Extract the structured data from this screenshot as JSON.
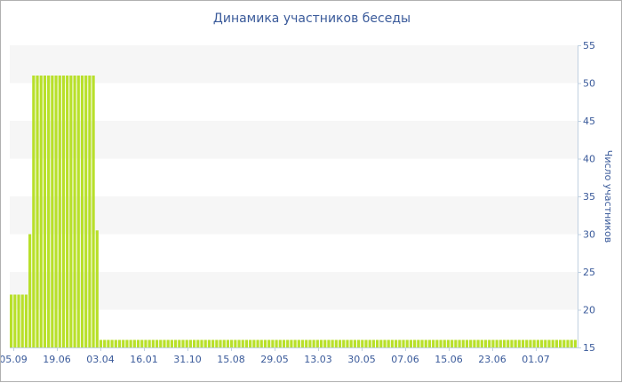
{
  "chart_data": {
    "type": "bar",
    "title": "Динамика участников беседы",
    "xlabel": "",
    "ylabel": "Число участников",
    "ylim": [
      15,
      55
    ],
    "y_ticks": [
      15,
      20,
      25,
      30,
      35,
      40,
      45,
      50,
      55
    ],
    "y_axis_side": "right",
    "x_tick_labels": [
      "05.09",
      "19.06",
      "03.04",
      "16.01",
      "31.10",
      "15.08",
      "29.05",
      "13.03",
      "30.05",
      "07.06",
      "15.06",
      "23.06",
      "01.07"
    ],
    "grid": "alternating horizontal bands",
    "legend": "none",
    "colors": {
      "bar": "#b8e02a",
      "text": "#3a5a9a",
      "band": "#f6f6f6",
      "axis": "#c0d0e0"
    },
    "values": [
      22,
      22,
      22,
      22,
      22,
      30,
      51,
      51,
      51,
      51,
      51,
      51,
      51,
      51,
      51,
      51,
      51,
      51,
      51,
      51,
      51,
      51,
      51,
      30.5,
      16,
      16,
      16,
      16,
      16,
      16,
      16,
      16,
      16,
      16,
      16,
      16,
      16,
      16,
      16,
      16,
      16,
      16,
      16,
      16,
      16,
      16,
      16,
      16,
      16,
      16,
      16,
      16,
      16,
      16,
      16,
      16,
      16,
      16,
      16,
      16,
      16,
      16,
      16,
      16,
      16,
      16,
      16,
      16,
      16,
      16,
      16,
      16,
      16,
      16,
      16,
      16,
      16,
      16,
      16,
      16,
      16,
      16,
      16,
      16,
      16,
      16,
      16,
      16,
      16,
      16,
      16,
      16,
      16,
      16,
      16,
      16,
      16,
      16,
      16,
      16,
      16,
      16,
      16,
      16,
      16,
      16,
      16,
      16,
      16,
      16,
      16,
      16,
      16,
      16,
      16,
      16,
      16,
      16,
      16,
      16,
      16,
      16,
      16,
      16,
      16,
      16,
      16,
      16,
      16,
      16,
      16,
      16,
      16,
      16,
      16,
      16,
      16,
      16,
      16,
      16,
      16,
      16,
      16,
      16,
      16,
      16,
      16,
      16,
      16,
      16,
      16,
      16
    ]
  }
}
